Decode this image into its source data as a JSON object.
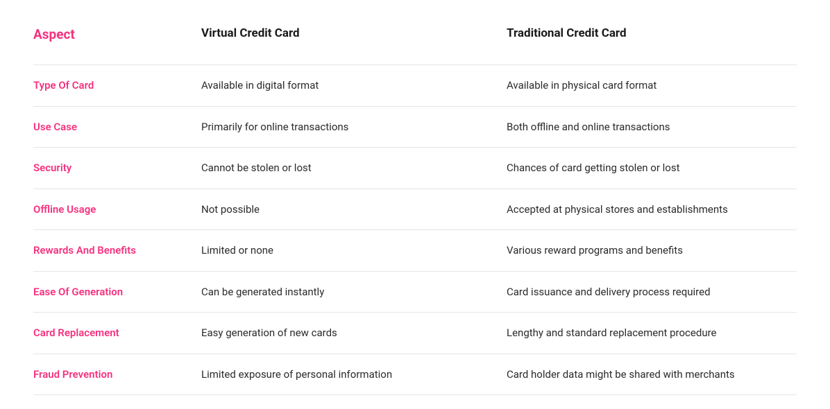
{
  "table": {
    "type": "table",
    "background_color": "#ffffff",
    "border_color": "#e5e5e5",
    "header_aspect_color": "#f5317f",
    "header_text_color": "#1a1a1a",
    "aspect_cell_color": "#f5317f",
    "body_text_color": "#2b2b2b",
    "header_fontsize": 17,
    "aspect_header_fontsize": 19,
    "body_fontsize": 15,
    "column_widths_pct": [
      22,
      40,
      38
    ],
    "columns": [
      "Aspect",
      "Virtual Credit Card",
      "Traditional Credit Card"
    ],
    "rows": [
      {
        "aspect": "Type Of Card",
        "virtual": "Available in digital format",
        "traditional": "Available in physical card format"
      },
      {
        "aspect": "Use Case",
        "virtual": "Primarily for online transactions",
        "traditional": "Both offline and online transactions"
      },
      {
        "aspect": "Security",
        "virtual": "Cannot be stolen or lost",
        "traditional": "Chances of card getting stolen or lost"
      },
      {
        "aspect": "Offline Usage",
        "virtual": "Not possible",
        "traditional": "Accepted at physical stores and establishments"
      },
      {
        "aspect": "Rewards And Benefits",
        "virtual": "Limited or none",
        "traditional": "Various reward programs and benefits"
      },
      {
        "aspect": "Ease Of Generation",
        "virtual": "Can be generated instantly",
        "traditional": "Card issuance and delivery process required"
      },
      {
        "aspect": "Card Replacement",
        "virtual": "Easy generation of new cards",
        "traditional": "Lengthy and standard replacement procedure"
      },
      {
        "aspect": "Fraud Prevention",
        "virtual": "Limited exposure of personal information",
        "traditional": "Card holder data might be shared with merchants"
      }
    ]
  }
}
